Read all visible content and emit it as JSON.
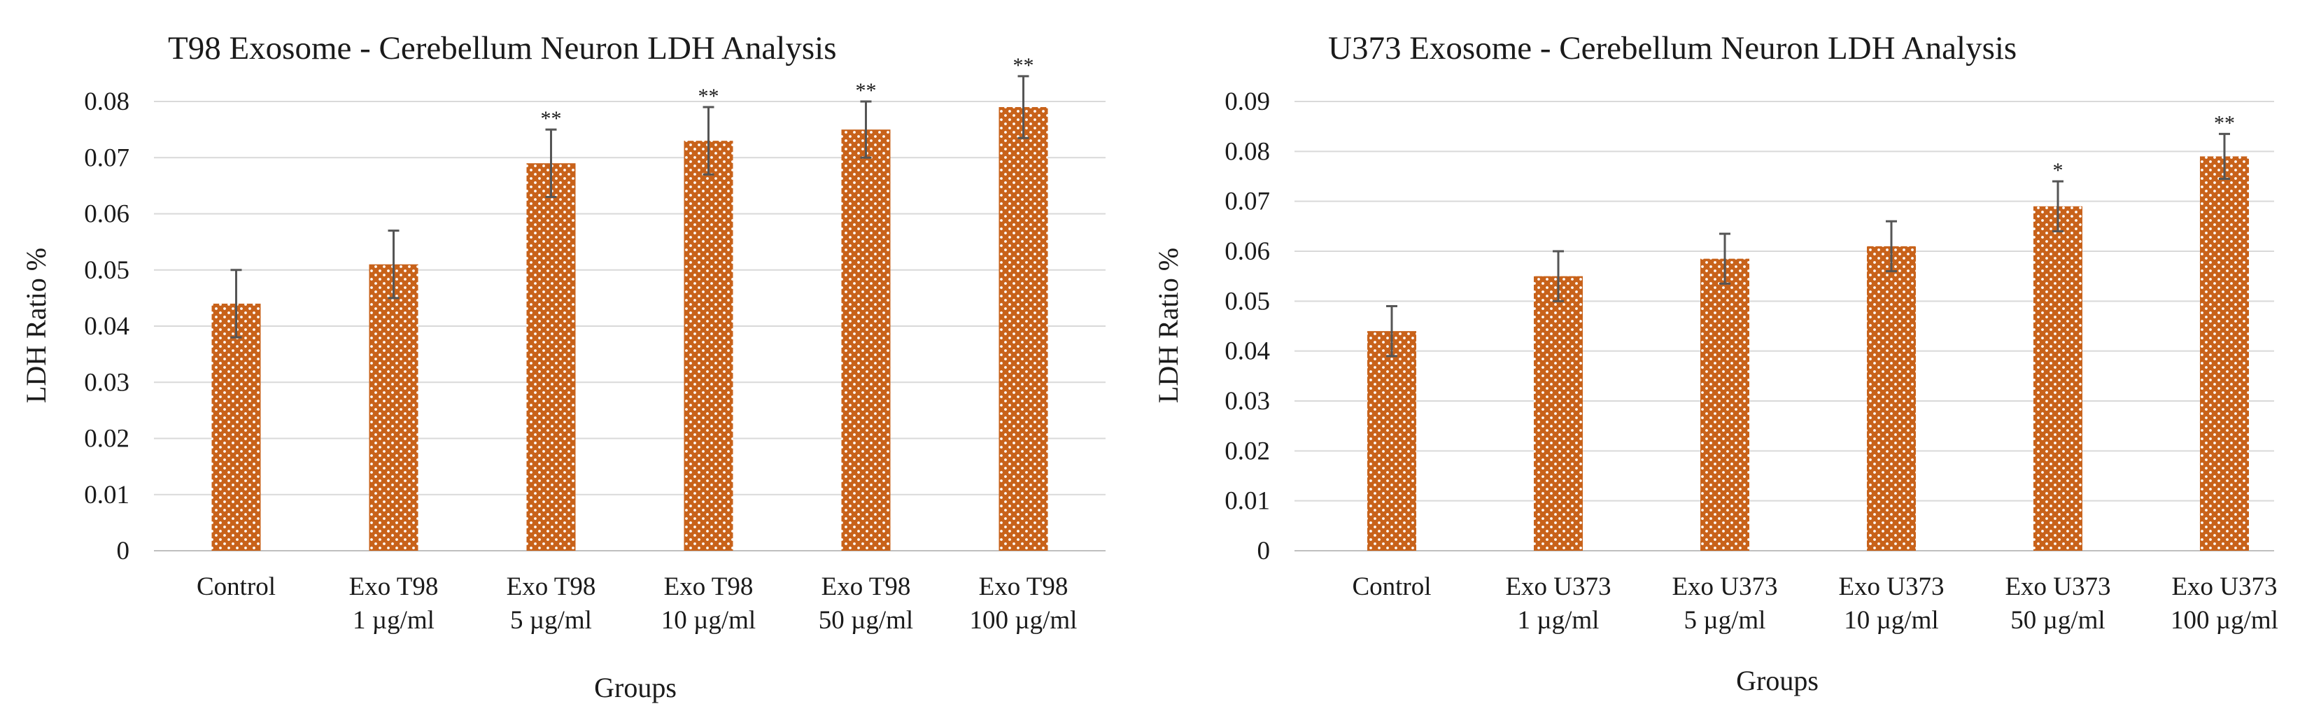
{
  "chart_data": [
    {
      "type": "bar",
      "title": "T98 Exosome - Cerebellum Neuron LDH Analysis",
      "xlabel": "Groups",
      "ylabel": "LDH Ratio %",
      "ylim": [
        0,
        0.08
      ],
      "yticks": [
        "0",
        "0.01",
        "0.02",
        "0.03",
        "0.04",
        "0.05",
        "0.06",
        "0.07",
        "0.08"
      ],
      "grid": true,
      "bar_color": "#C8621A",
      "categories": [
        [
          "Control"
        ],
        [
          "Exo T98",
          "1 µg/ml"
        ],
        [
          "Exo T98",
          "5 µg/ml"
        ],
        [
          "Exo T98",
          "10 µg/ml"
        ],
        [
          "Exo T98",
          "50 µg/ml"
        ],
        [
          "Exo T98",
          "100 µg/ml"
        ]
      ],
      "values": [
        0.044,
        0.051,
        0.069,
        0.073,
        0.075,
        0.079
      ],
      "errors": [
        0.006,
        0.006,
        0.006,
        0.006,
        0.005,
        0.0055
      ],
      "significance": [
        "",
        "",
        "**",
        "**",
        "**",
        "**"
      ]
    },
    {
      "type": "bar",
      "title": "U373 Exosome - Cerebellum Neuron LDH Analysis",
      "xlabel": "Groups",
      "ylabel": "LDH Ratio %",
      "ylim": [
        0,
        0.09
      ],
      "yticks": [
        "0",
        "0.01",
        "0.02",
        "0.03",
        "0.04",
        "0.05",
        "0.06",
        "0.07",
        "0.08",
        "0.09"
      ],
      "grid": true,
      "bar_color": "#C8621A",
      "categories": [
        [
          "Control"
        ],
        [
          "Exo U373",
          "1 µg/ml"
        ],
        [
          "Exo U373",
          "5 µg/ml"
        ],
        [
          "Exo U373",
          "10 µg/ml"
        ],
        [
          "Exo U373",
          "50 µg/ml"
        ],
        [
          "Exo U373",
          "100 µg/ml"
        ]
      ],
      "values": [
        0.044,
        0.055,
        0.0585,
        0.061,
        0.069,
        0.079
      ],
      "errors": [
        0.005,
        0.005,
        0.005,
        0.005,
        0.005,
        0.0045
      ],
      "significance": [
        "",
        "",
        "",
        "",
        "*",
        "**"
      ]
    }
  ]
}
